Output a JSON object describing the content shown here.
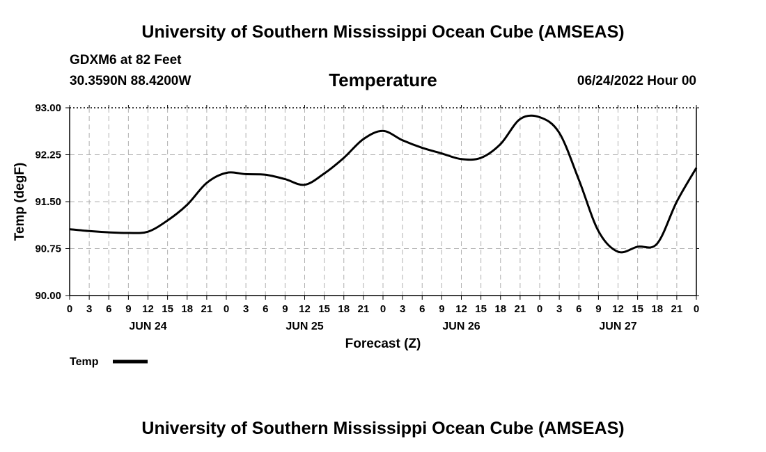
{
  "header": {
    "title": "University of Southern Mississippi Ocean Cube (AMSEAS)",
    "station": "GDXM6 at 82 Feet",
    "coords": "30.3590N  88.4200W",
    "run_time": "06/24/2022 Hour 00"
  },
  "footer": {
    "title": "University of Southern Mississippi Ocean Cube (AMSEAS)"
  },
  "chart_data": {
    "type": "line",
    "title": "Temperature",
    "xlabel": "Forecast (Z)",
    "ylabel": "Temp (degF)",
    "ylim": [
      90.0,
      93.0
    ],
    "xlim": [
      0,
      96
    ],
    "yticks": [
      "90.00",
      "90.75",
      "91.50",
      "92.25",
      "93.00"
    ],
    "ytick_values": [
      90.0,
      90.75,
      91.5,
      92.25,
      93.0
    ],
    "xtick_labels": [
      "0",
      "3",
      "6",
      "9",
      "12",
      "15",
      "18",
      "21",
      "0",
      "3",
      "6",
      "9",
      "12",
      "15",
      "18",
      "21",
      "0",
      "3",
      "6",
      "9",
      "12",
      "15",
      "18",
      "21",
      "0",
      "3",
      "6",
      "9",
      "12",
      "15",
      "18",
      "21",
      "0"
    ],
    "day_labels": [
      {
        "label": "JUN 24",
        "hour": 12
      },
      {
        "label": "JUN 25",
        "hour": 36
      },
      {
        "label": "JUN 26",
        "hour": 60
      },
      {
        "label": "JUN 27",
        "hour": 84
      }
    ],
    "grid": true,
    "legend": {
      "position": "bottom-left",
      "entries": [
        "Temp"
      ]
    },
    "series": [
      {
        "name": "Temp",
        "x": [
          0,
          3,
          6,
          9,
          12,
          15,
          18,
          21,
          24,
          27,
          30,
          33,
          36,
          39,
          42,
          45,
          48,
          51,
          54,
          57,
          60,
          63,
          66,
          69,
          72,
          75,
          78,
          81,
          84,
          87,
          90,
          93,
          96
        ],
        "values": [
          91.06,
          91.03,
          91.01,
          91.0,
          91.02,
          91.2,
          91.45,
          91.8,
          91.96,
          91.94,
          91.93,
          91.86,
          91.77,
          91.95,
          92.2,
          92.5,
          92.63,
          92.48,
          92.36,
          92.27,
          92.18,
          92.2,
          92.42,
          92.82,
          92.85,
          92.6,
          91.85,
          91.03,
          90.7,
          90.78,
          90.83,
          91.5,
          92.04
        ]
      }
    ]
  }
}
